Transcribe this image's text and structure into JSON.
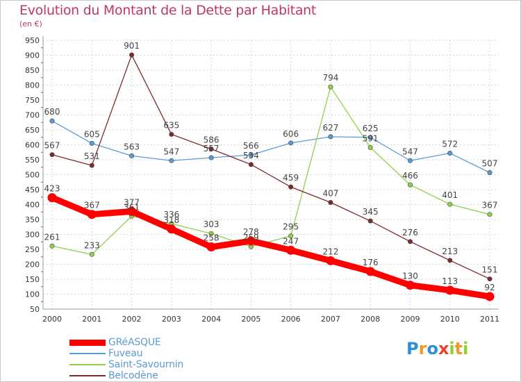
{
  "header": {
    "title": "Evolution du Montant de la Dette par Habitant",
    "subtitle": "(en €)"
  },
  "chart_data": {
    "type": "line",
    "title": "Evolution du Montant de la Dette par Habitant",
    "ylabel": "(en €)",
    "x": [
      "2000",
      "2001",
      "2002",
      "2003",
      "2004",
      "2005",
      "2006",
      "2007",
      "2008",
      "2009",
      "2010",
      "2011"
    ],
    "ylim": [
      50,
      950
    ],
    "yticks": [
      50,
      100,
      150,
      200,
      250,
      300,
      350,
      400,
      450,
      500,
      550,
      600,
      650,
      700,
      750,
      800,
      850,
      900,
      950
    ],
    "grid": true,
    "legend_position": "bottom-left",
    "series": [
      {
        "name": "GRéASQUE",
        "color": "#ff0000",
        "values": [
          423,
          367,
          377,
          318,
          258,
          278,
          247,
          212,
          176,
          130,
          113,
          92
        ]
      },
      {
        "name": "Fuveau",
        "color": "#5b9bd5",
        "values": [
          680,
          605,
          563,
          547,
          557,
          566,
          606,
          627,
          625,
          547,
          572,
          507
        ]
      },
      {
        "name": "Saint-Savournin",
        "color": "#8fd14f",
        "values": [
          261,
          233,
          361,
          336,
          303,
          259,
          295,
          794,
          591,
          466,
          401,
          367
        ]
      },
      {
        "name": "Belcodène",
        "color": "#7b2b2b",
        "values": [
          567,
          531,
          901,
          635,
          586,
          534,
          459,
          407,
          345,
          276,
          213,
          151
        ]
      }
    ]
  },
  "logo": {
    "letters": [
      "P",
      "r",
      "o",
      "x",
      "i",
      "t",
      "i"
    ],
    "colors": [
      "#2d8fd8",
      "#f29a1f",
      "#2d8fd8",
      "#e8412c",
      "#8fcb3a",
      "#f29a1f",
      "#8fcb3a"
    ]
  }
}
